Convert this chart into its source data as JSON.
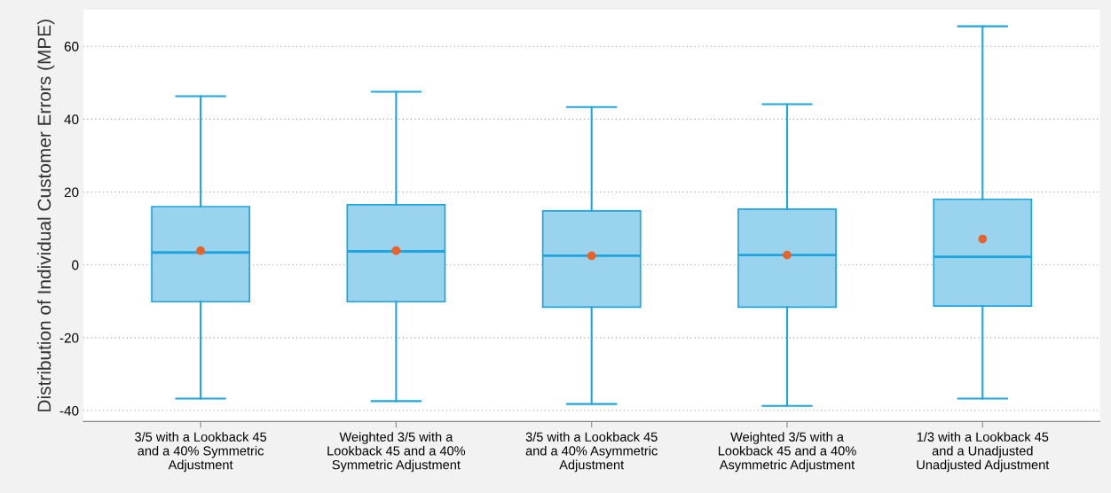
{
  "chart_data": {
    "type": "box",
    "ylabel": "Distribution of Individual Customer Errors (MPE)",
    "categories": [
      "3/5 with a Lookback 45\nand a 40% Symmetric\nAdjustment",
      "Weighted 3/5 with a\nLookback 45 and a 40%\nSymmetric Adjustment",
      "3/5 with a Lookback 45\nand a 40% Asymmetric\nAdjustment",
      "Weighted 3/5 with a\nLookback 45 and a 40%\nAsymmetric Adjustment",
      "1/3 with a Lookback 45\nand a Unadjusted\nUnadjusted Adjustment"
    ],
    "boxes": [
      {
        "low": -36.7,
        "q1": -10.1,
        "median": 3.4,
        "q3": 16.0,
        "high": 46.3,
        "mean": 3.9
      },
      {
        "low": -37.4,
        "q1": -10.1,
        "median": 3.7,
        "q3": 16.5,
        "high": 47.5,
        "mean": 3.9
      },
      {
        "low": -38.2,
        "q1": -11.6,
        "median": 2.5,
        "q3": 14.8,
        "high": 43.3,
        "mean": 2.5
      },
      {
        "low": -38.7,
        "q1": -11.6,
        "median": 2.7,
        "q3": 15.3,
        "high": 44.1,
        "mean": 2.7
      },
      {
        "low": -36.7,
        "q1": -11.3,
        "median": 2.2,
        "q3": 18.0,
        "high": 65.5,
        "mean": 7.1
      }
    ],
    "color": "#99d3ee",
    "ylim": [
      -43,
      70
    ],
    "yticks": [
      -40,
      -20,
      0,
      20,
      40,
      60
    ],
    "grid": "y"
  }
}
